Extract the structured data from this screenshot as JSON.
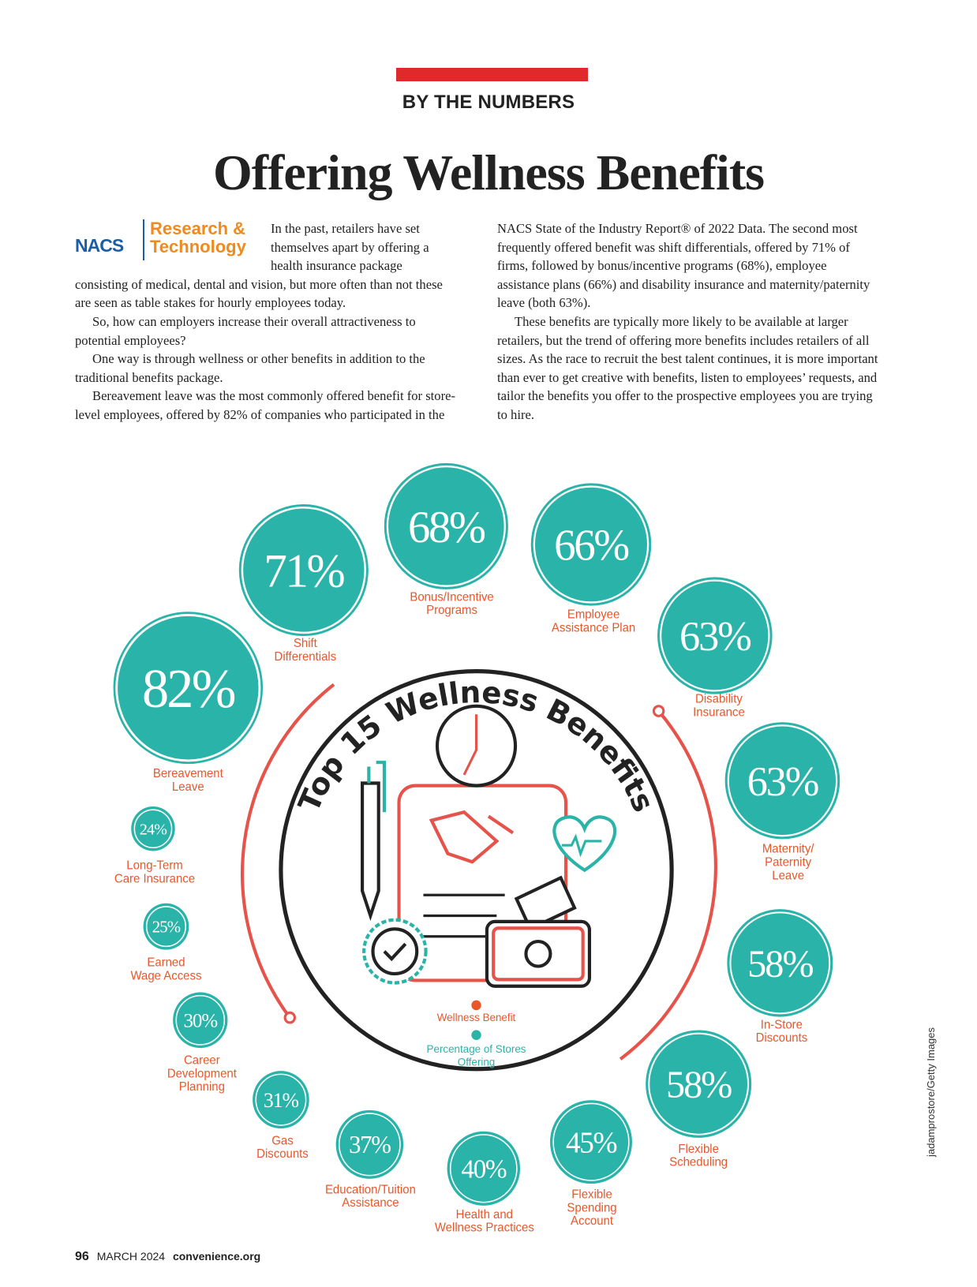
{
  "header": {
    "section": "BY THE NUMBERS",
    "title": "Offering Wellness Benefits",
    "logo": "NACS",
    "department": "Research & Technology"
  },
  "body": {
    "paragraphs": [
      "In the past, retailers have set themselves apart by offering a health insurance package consisting of medical, dental and vision, but more often than not these are seen as table stakes for hourly employees today.",
      "So, how can employers increase their overall attractiveness to potential employees?",
      "One way is through wellness or other benefits in addition to the traditional benefits package.",
      "Bereavement leave was the most commonly offered benefit for store-level employees, offered by 82% of companies who participated in the NACS State of the Industry Report® of 2022 Data. The second most frequently offered benefit was shift differentials, offered by 71% of firms, followed by bonus/incentive programs (68%), employee assistance plans (66%) and disability insurance and maternity/paternity leave (both 63%).",
      "These benefits are typically more likely to be available at larger retailers, but the trend of offering more benefits includes retailers of all sizes. As the race to recruit the best talent continues, it is more important than ever to get creative with benefits, listen to employees’ requests, and tailor the benefits you offer to the prospective employees you are trying to hire."
    ]
  },
  "infographic": {
    "title": "Top 15 Wellness Benefits",
    "legend": [
      "Wellness Benefit",
      "Percentage of Stores Offering"
    ],
    "benefits": [
      {
        "label_lines": [
          "Bereavement",
          "Leave"
        ],
        "value": 82,
        "value_label": "82%"
      },
      {
        "label_lines": [
          "Shift",
          "Differentials"
        ],
        "value": 71,
        "value_label": "71%"
      },
      {
        "label_lines": [
          "Bonus/Incentive",
          "Programs"
        ],
        "value": 68,
        "value_label": "68%"
      },
      {
        "label_lines": [
          "Employee",
          "Assistance Plan"
        ],
        "value": 66,
        "value_label": "66%"
      },
      {
        "label_lines": [
          "Disability",
          "Insurance"
        ],
        "value": 63,
        "value_label": "63%"
      },
      {
        "label_lines": [
          "Maternity/",
          "Paternity",
          "Leave"
        ],
        "value": 63,
        "value_label": "63%"
      },
      {
        "label_lines": [
          "In-Store",
          "Discounts"
        ],
        "value": 58,
        "value_label": "58%"
      },
      {
        "label_lines": [
          "Flexible",
          "Scheduling"
        ],
        "value": 58,
        "value_label": "58%"
      },
      {
        "label_lines": [
          "Flexible",
          "Spending",
          "Account"
        ],
        "value": 45,
        "value_label": "45%"
      },
      {
        "label_lines": [
          "Health and",
          "Wellness Practices"
        ],
        "value": 40,
        "value_label": "40%"
      },
      {
        "label_lines": [
          "Education/Tuition",
          "Assistance"
        ],
        "value": 37,
        "value_label": "37%"
      },
      {
        "label_lines": [
          "Gas",
          "Discounts"
        ],
        "value": 31,
        "value_label": "31%"
      },
      {
        "label_lines": [
          "Career",
          "Development",
          "Planning"
        ],
        "value": 30,
        "value_label": "30%"
      },
      {
        "label_lines": [
          "Earned",
          "Wage Access"
        ],
        "value": 25,
        "value_label": "25%"
      },
      {
        "label_lines": [
          "Long-Term",
          "Care Insurance"
        ],
        "value": 24,
        "value_label": "24%"
      }
    ]
  },
  "credit": "jadamprostore/Getty Images",
  "footer": {
    "page": "96",
    "issue": "MARCH 2024",
    "site": "convenience.org"
  }
}
